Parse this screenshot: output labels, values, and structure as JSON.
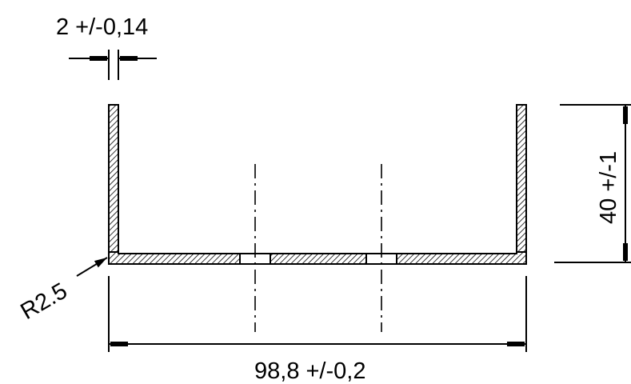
{
  "drawing": {
    "thickness_label": "2 +/-0,14",
    "height_label": "40 +/-1",
    "width_label": "98,8 +/-0,2",
    "radius_label": "R2.5"
  },
  "colors": {
    "line": "#000000",
    "background": "#ffffff"
  }
}
